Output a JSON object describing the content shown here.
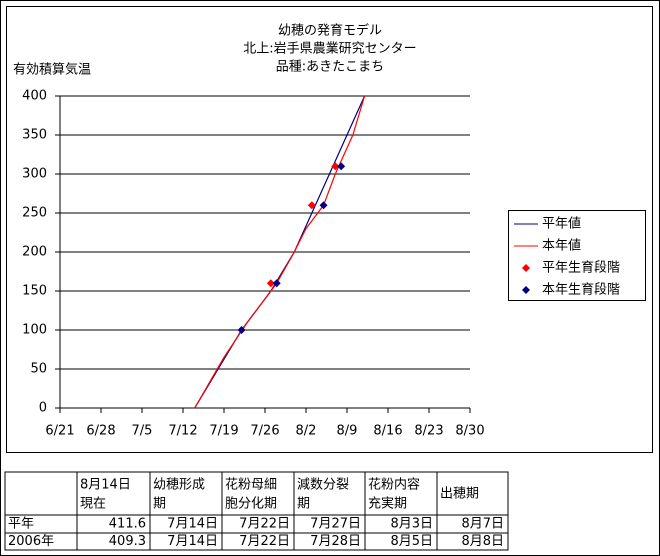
{
  "chart_data": {
    "type": "line",
    "title": [
      "幼穂の発育モデル",
      "北上:岩手県農業研究センター",
      "品種:あきたこまち"
    ],
    "y_label": "有効積算気温",
    "xlim": [
      172,
      242
    ],
    "xticks": [
      {
        "value": 172,
        "label": "6/21"
      },
      {
        "value": 179,
        "label": "6/28"
      },
      {
        "value": 186,
        "label": "7/5"
      },
      {
        "value": 193,
        "label": "7/12"
      },
      {
        "value": 200,
        "label": "7/19"
      },
      {
        "value": 207,
        "label": "7/26"
      },
      {
        "value": 214,
        "label": "8/2"
      },
      {
        "value": 221,
        "label": "8/9"
      },
      {
        "value": 228,
        "label": "8/16"
      },
      {
        "value": 235,
        "label": "8/23"
      },
      {
        "value": 242,
        "label": "8/30"
      }
    ],
    "ylim": [
      0,
      400
    ],
    "yticks": [
      0,
      50,
      100,
      150,
      200,
      250,
      300,
      350,
      400
    ],
    "grid": true,
    "series": [
      {
        "name": "平年値",
        "kind": "line",
        "color": "#000080",
        "x": [
          195,
          199,
          203,
          208,
          212,
          215,
          218,
          221,
          224
        ],
        "values": [
          0,
          50,
          100,
          150,
          200,
          250,
          300,
          350,
          400
        ]
      },
      {
        "name": "本年値",
        "kind": "line",
        "color": "#ff0000",
        "x": [
          195,
          200,
          204,
          209,
          212,
          214,
          217,
          219,
          222,
          224
        ],
        "values": [
          0,
          65,
          110,
          160,
          200,
          230,
          260,
          300,
          350,
          400
        ]
      },
      {
        "name": "平年生育段階",
        "kind": "scatter",
        "color": "#ff0000",
        "x": [
          208,
          215,
          219
        ],
        "values": [
          160,
          260,
          310
        ]
      },
      {
        "name": "本年生育段階",
        "kind": "scatter",
        "color": "#000080",
        "x": [
          203,
          209,
          217,
          220
        ],
        "values": [
          100,
          160,
          260,
          310
        ]
      }
    ]
  },
  "table": {
    "header": [
      [],
      [
        "8月14日",
        "現在"
      ],
      [
        "幼穂形成",
        "期"
      ],
      [
        "花粉母細",
        "胞分化期"
      ],
      [
        "減数分裂",
        "期"
      ],
      [
        "花粉内容",
        "充実期"
      ],
      [
        "出穂期"
      ]
    ],
    "rows": [
      [
        "平年",
        "411.6",
        "7月14日",
        "7月22日",
        "7月27日",
        "8月3日",
        "8月7日"
      ],
      [
        "2006年",
        "409.3",
        "7月14日",
        "7月22日",
        "7月28日",
        "8月5日",
        "8月8日"
      ]
    ]
  }
}
